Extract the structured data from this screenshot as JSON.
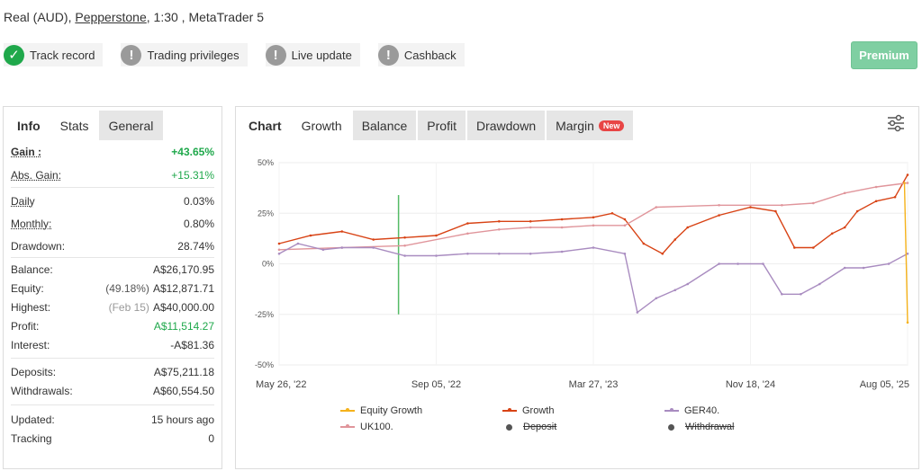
{
  "header": {
    "account": "Real (AUD),",
    "broker": "Pepperstone",
    "details": ", 1:30 , MetaTrader 5"
  },
  "badges": [
    {
      "label": "Track record",
      "icon": "check-icon",
      "status": "ok"
    },
    {
      "label": "Trading privileges",
      "icon": "exclamation-icon",
      "status": "warn"
    },
    {
      "label": "Live update",
      "icon": "exclamation-icon",
      "status": "warn"
    },
    {
      "label": "Cashback",
      "icon": "exclamation-icon",
      "status": "warn"
    }
  ],
  "premium_label": "Premium",
  "left_tabs": [
    "Info",
    "Stats",
    "General"
  ],
  "stats": {
    "gain": {
      "label": "Gain :",
      "value": "+43.65%"
    },
    "abs_gain": {
      "label": "Abs. Gain:",
      "value": "+15.31%"
    },
    "daily": {
      "label": "Daily",
      "value": "0.03%"
    },
    "monthly": {
      "label": "Monthly:",
      "value": "0.80%"
    },
    "drawdown": {
      "label": "Drawdown:",
      "value": "28.74%"
    },
    "balance": {
      "label": "Balance:",
      "value": "A$26,170.95"
    },
    "equity": {
      "label": "Equity:",
      "pre": "(49.18%)",
      "value": "A$12,871.71"
    },
    "highest": {
      "label": "Highest:",
      "pre": "(Feb 15)",
      "value": "A$40,000.00"
    },
    "profit": {
      "label": "Profit:",
      "value": "A$11,514.27"
    },
    "interest": {
      "label": "Interest:",
      "value": "-A$81.36"
    },
    "deposits": {
      "label": "Deposits:",
      "value": "A$75,211.18"
    },
    "withdrawals": {
      "label": "Withdrawals:",
      "value": "A$60,554.50"
    },
    "updated": {
      "label": "Updated:",
      "value": "15 hours ago"
    },
    "tracking": {
      "label": "Tracking",
      "value": "0"
    }
  },
  "right_tabs": [
    "Chart",
    "Growth",
    "Balance",
    "Profit",
    "Drawdown",
    "Margin"
  ],
  "new_badge": "New",
  "colors": {
    "green": "#1fa84b",
    "growth": "#d84315",
    "uk100": "#e0959b",
    "ger40": "#a98cc0",
    "equity": "#f5b21b",
    "premium": "#7fcfa2"
  },
  "chart_data": {
    "type": "line",
    "y_ticks": [
      "50%",
      "25%",
      "0%",
      "-25%",
      "-50%"
    ],
    "ylim": [
      -50,
      50
    ],
    "x_ticks": [
      "May 26, '22",
      "Sep 05, '22",
      "Mar 27, '23",
      "Nov 18, '24",
      "Aug 05, '25"
    ],
    "series": [
      {
        "name": "Growth",
        "color": "#d84315",
        "x": [
          0,
          0.05,
          0.1,
          0.15,
          0.2,
          0.25,
          0.3,
          0.35,
          0.4,
          0.45,
          0.5,
          0.53,
          0.55,
          0.58,
          0.61,
          0.63,
          0.65,
          0.7,
          0.75,
          0.79,
          0.82,
          0.85,
          0.88,
          0.9,
          0.92,
          0.95,
          0.98,
          1.0
        ],
        "values": [
          10,
          14,
          16,
          12,
          13,
          14,
          20,
          21,
          21,
          22,
          23,
          25,
          22,
          10,
          5,
          12,
          18,
          24,
          28,
          26,
          8,
          8,
          15,
          18,
          26,
          31,
          33,
          44
        ]
      },
      {
        "name": "UK100.",
        "color": "#e0959b",
        "x": [
          0,
          0.1,
          0.2,
          0.3,
          0.35,
          0.4,
          0.45,
          0.5,
          0.55,
          0.6,
          0.7,
          0.8,
          0.85,
          0.9,
          0.95,
          1.0
        ],
        "values": [
          7,
          8,
          9,
          15,
          17,
          18,
          18,
          19,
          19,
          28,
          29,
          29,
          30,
          35,
          38,
          40
        ]
      },
      {
        "name": "GER40.",
        "color": "#a98cc0",
        "x": [
          0,
          0.03,
          0.07,
          0.1,
          0.15,
          0.2,
          0.25,
          0.3,
          0.35,
          0.4,
          0.45,
          0.5,
          0.55,
          0.57,
          0.6,
          0.63,
          0.65,
          0.7,
          0.73,
          0.77,
          0.8,
          0.83,
          0.86,
          0.9,
          0.93,
          0.97,
          1.0
        ],
        "values": [
          5,
          10,
          7,
          8,
          8,
          4,
          4,
          5,
          5,
          5,
          6,
          8,
          5,
          -24,
          -17,
          -13,
          -10,
          0,
          0,
          0,
          -15,
          -15,
          -10,
          -2,
          -2,
          0,
          5
        ]
      },
      {
        "name": "Equity Growth",
        "color": "#f5b21b",
        "x": [
          0.995,
          1.0
        ],
        "values": [
          40,
          -29
        ]
      }
    ],
    "legend": [
      "Equity Growth",
      "Growth",
      "GER40.",
      "UK100.",
      "Deposit",
      "Withdrawal"
    ]
  }
}
